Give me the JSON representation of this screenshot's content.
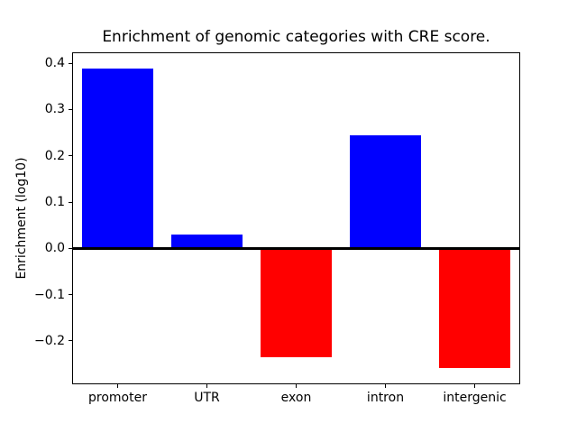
{
  "title": "Enrichment of genomic categories with CRE score.",
  "chart_data": {
    "type": "bar",
    "title": "Enrichment of genomic categories with CRE score.",
    "xlabel": "",
    "ylabel": "Enrichment (log10)",
    "categories": [
      "promoter",
      "UTR",
      "exon",
      "intron",
      "intergenic"
    ],
    "values": [
      0.389,
      0.03,
      -0.236,
      0.244,
      -0.258
    ],
    "bar_colors": [
      "#0000ff",
      "#0000ff",
      "#ff0000",
      "#0000ff",
      "#ff0000"
    ],
    "positive_color": "#0000ff",
    "negative_color": "#ff0000",
    "ylim": [
      -0.2916,
      0.4215
    ],
    "yticks": [
      0.4,
      0.3,
      0.2,
      0.1,
      0.0,
      -0.1,
      -0.2
    ],
    "ytick_labels": [
      "0.4",
      "0.3",
      "0.2",
      "0.1",
      "0.0",
      "−0.1",
      "−0.2"
    ],
    "zero_line": true,
    "grid": false,
    "legend": "none",
    "bar_width_fraction": 0.8
  }
}
